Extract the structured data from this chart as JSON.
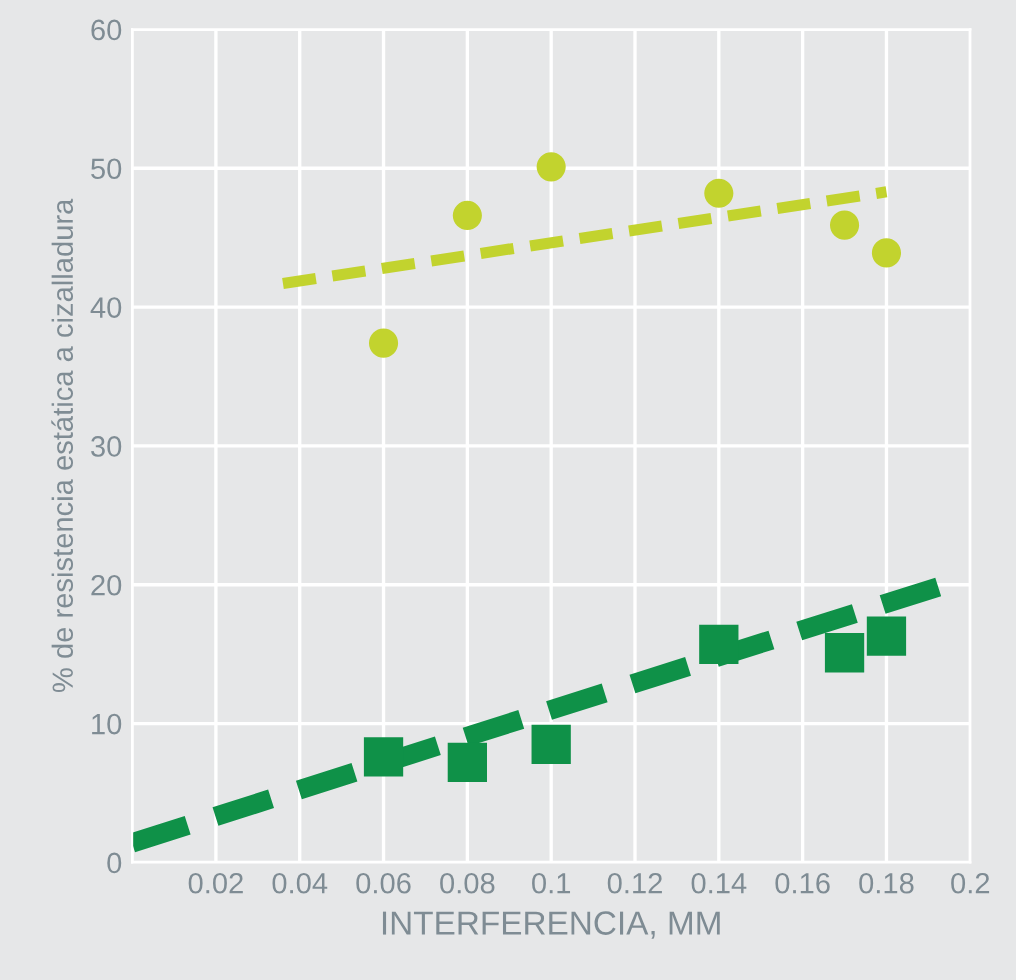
{
  "chart_data": {
    "type": "scatter",
    "xlabel": "INTERFERENCIA, MM",
    "ylabel": "% de resistencia estática a cizalladura",
    "xlim": [
      0,
      0.2
    ],
    "ylim": [
      0,
      60
    ],
    "xticks": [
      {
        "value": 0,
        "label": null
      },
      0.02,
      0.04,
      0.06,
      0.08,
      0.1,
      0.12,
      0.14,
      0.16,
      0.18,
      0.2
    ],
    "yticks": [
      0,
      10,
      20,
      30,
      40,
      50,
      60
    ],
    "grid": true,
    "series": [
      {
        "marker": "circle",
        "color": "#c2d32e",
        "x": [
          0.06,
          0.08,
          0.1,
          0.14,
          0.17,
          0.18
        ],
        "values": [
          37.4,
          46.6,
          50.1,
          48.2,
          45.9,
          43.9
        ]
      },
      {
        "type": "line",
        "line_style": "dashed",
        "marker": "none",
        "color": "#c2d32e",
        "x": [
          0.036,
          0.18
        ],
        "values": [
          41.7,
          48.3
        ]
      },
      {
        "marker": "square",
        "color": "#0f9148",
        "x": [
          0.06,
          0.08,
          0.1,
          0.14,
          0.17,
          0.18
        ],
        "values": [
          7.6,
          7.2,
          8.5,
          15.7,
          15.1,
          16.3
        ]
      },
      {
        "type": "line",
        "line_style": "dashed",
        "marker": "none",
        "color": "#0f9148",
        "x": [
          0,
          0.194
        ],
        "values": [
          1.4,
          20.0
        ]
      }
    ]
  }
}
